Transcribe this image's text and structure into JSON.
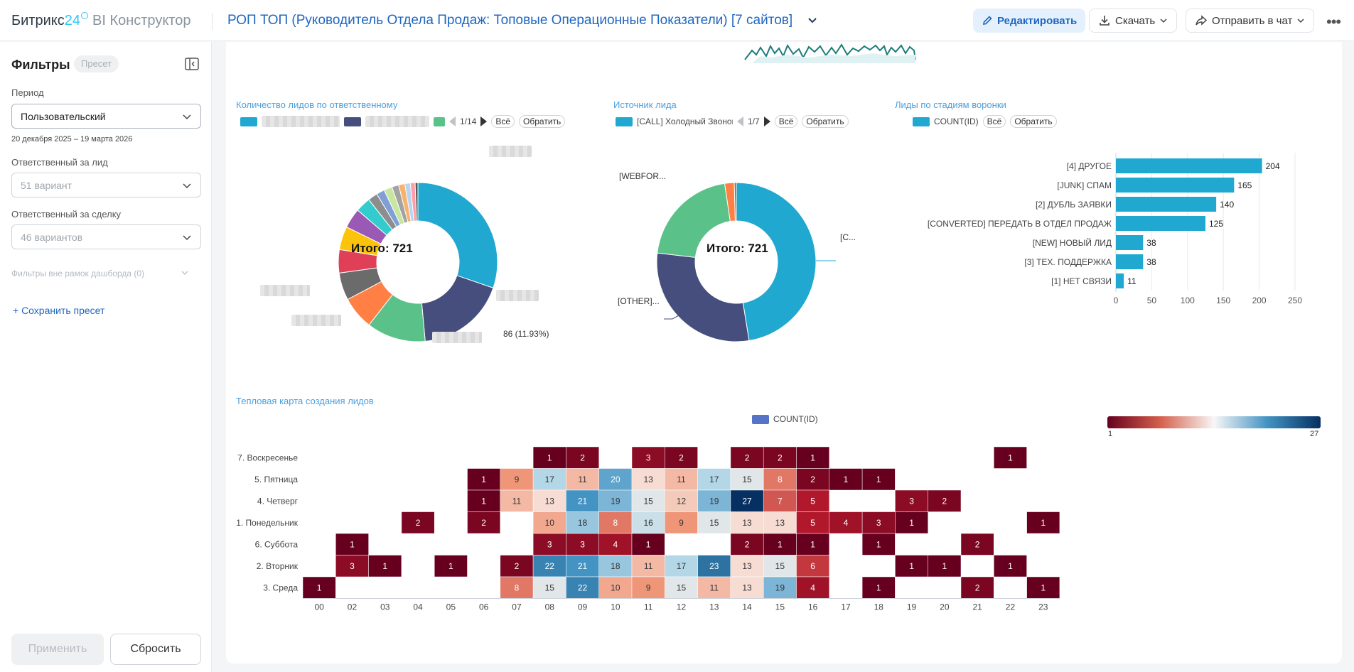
{
  "header": {
    "brand_main": "Битрикс",
    "brand_num": "24",
    "brand_product": "BI Конструктор",
    "dashboard_title": "РОП ТОП (Руководитель Отдела Продаж: Топовые Операционные Показатели) [7 сайтов]",
    "edit_label": "Редактировать",
    "download_label": "Скачать",
    "send_label": "Отправить в чат",
    "more_label": "•••"
  },
  "sidebar": {
    "title": "Фильтры",
    "preset_badge": "Пресет",
    "period_label": "Период",
    "period_value": "Пользовательский",
    "period_range": "20 декабря 2025 – 19 марта 2026",
    "lead_owner_label": "Ответственный за лид",
    "lead_owner_value": "51 вариант",
    "deal_owner_label": "Ответственный за сделку",
    "deal_owner_value": "46 вариантов",
    "outside_filters": "Фильтры вне рамок дашборда (0)",
    "save_preset": "+ Сохранить пресет",
    "apply_label": "Применить",
    "reset_label": "Сбросить"
  },
  "widgets": {
    "leads_by_owner": {
      "title": "Количество лидов по ответственному",
      "pager": "1/14",
      "all_label": "Всё",
      "invert_label": "Обратить",
      "total_label": "Итого: 721",
      "slice_label": "86 (11.93%)"
    },
    "lead_source": {
      "title": "Источник лида",
      "legend_first": "[CALL] Холодный Звонок",
      "pager": "1/7",
      "all_label": "Всё",
      "invert_label": "Обратить",
      "total_label": "Итого: 721",
      "label_webform": "[WEBFOR...",
      "label_other": "[OTHER]...",
      "label_call": "[C..."
    },
    "leads_by_stage": {
      "title": "Лиды по стадиям воронки",
      "legend": "COUNT(ID)",
      "all_label": "Всё",
      "invert_label": "Обратить"
    },
    "heatmap": {
      "title": "Тепловая карта создания лидов",
      "legend": "COUNT(ID)",
      "scale_min": "1",
      "scale_max": "27"
    }
  },
  "colors": {
    "accent": "#1f66c1",
    "bar": "#20a8d0",
    "slice_teal": "#20a8d0",
    "slice_navy": "#464e7e",
    "slice_green": "#5ac189",
    "slice_orange": "#ff7f44",
    "heat_low": "#67001f",
    "heat_mid": "#f7f7f7",
    "heat_high": "#053061"
  },
  "chart_data": [
    {
      "type": "pie",
      "title": "Количество лидов по ответственному",
      "total": 721,
      "values": [
        217,
        131,
        86,
        48,
        40,
        34,
        34,
        29,
        22,
        14,
        12,
        12,
        10,
        9,
        8,
        7,
        4
      ],
      "annotation": "86 (11.93%)"
    },
    {
      "type": "pie",
      "title": "Источник лида",
      "total": 721,
      "categories": [
        "[CALL] Холодный Звонок",
        "[OTHER]...",
        "[WEBFOR...",
        "",
        ""
      ],
      "values": [
        342,
        212,
        150,
        14,
        3
      ]
    },
    {
      "type": "bar",
      "orientation": "horizontal",
      "title": "Лиды по стадиям воронки",
      "categories": [
        "[4] ДРУГОЕ",
        "[JUNK] СПАМ",
        "[2] ДУБЛЬ ЗАЯВКИ",
        "[CONVERTED] ПЕРЕДАТЬ В ОТДЕЛ ПРОДАЖ",
        "[NEW] НОВЫЙ ЛИД",
        "[3] ТЕХ. ПОДДЕРЖКА",
        "[1] НЕТ СВЯЗИ"
      ],
      "values": [
        204,
        165,
        140,
        125,
        38,
        38,
        11
      ],
      "xlim": [
        0,
        250
      ],
      "xticks": [
        "0",
        "50",
        "100",
        "150",
        "200",
        "250"
      ],
      "legend": "COUNT(ID)"
    },
    {
      "type": "heatmap",
      "title": "Тепловая карта создания лидов",
      "x": [
        "00",
        "02",
        "03",
        "04",
        "05",
        "06",
        "07",
        "08",
        "09",
        "10",
        "11",
        "12",
        "13",
        "14",
        "15",
        "16",
        "17",
        "18",
        "19",
        "20",
        "21",
        "22",
        "23"
      ],
      "y": [
        "7. Воскресенье",
        "5. Пятница",
        "4. Четверг",
        "1. Понедельник",
        "6. Суббота",
        "2. Вторник",
        "3. Среда"
      ],
      "values": [
        [
          null,
          null,
          null,
          null,
          null,
          null,
          null,
          1,
          2,
          null,
          3,
          2,
          null,
          2,
          2,
          1,
          null,
          null,
          null,
          null,
          null,
          1,
          null
        ],
        [
          null,
          null,
          null,
          null,
          null,
          1,
          9,
          17,
          11,
          20,
          13,
          11,
          17,
          15,
          8,
          2,
          1,
          1,
          null,
          null,
          null,
          null,
          null
        ],
        [
          null,
          null,
          null,
          null,
          null,
          1,
          11,
          13,
          21,
          19,
          15,
          12,
          19,
          27,
          7,
          5,
          null,
          null,
          3,
          2,
          null,
          null,
          null
        ],
        [
          null,
          null,
          null,
          2,
          null,
          2,
          null,
          10,
          18,
          8,
          16,
          9,
          15,
          13,
          13,
          5,
          4,
          3,
          1,
          null,
          null,
          null,
          1
        ],
        [
          null,
          1,
          null,
          null,
          null,
          null,
          null,
          3,
          3,
          4,
          1,
          null,
          null,
          2,
          1,
          1,
          null,
          1,
          null,
          null,
          2,
          null,
          null
        ],
        [
          null,
          3,
          1,
          null,
          1,
          null,
          2,
          22,
          21,
          18,
          11,
          17,
          23,
          13,
          15,
          6,
          null,
          null,
          1,
          1,
          null,
          1,
          null
        ],
        [
          1,
          null,
          null,
          null,
          null,
          null,
          8,
          15,
          22,
          10,
          9,
          15,
          11,
          13,
          19,
          4,
          null,
          1,
          null,
          null,
          2,
          null,
          1
        ]
      ],
      "scale": [
        1,
        27
      ],
      "legend": "COUNT(ID)"
    }
  ]
}
